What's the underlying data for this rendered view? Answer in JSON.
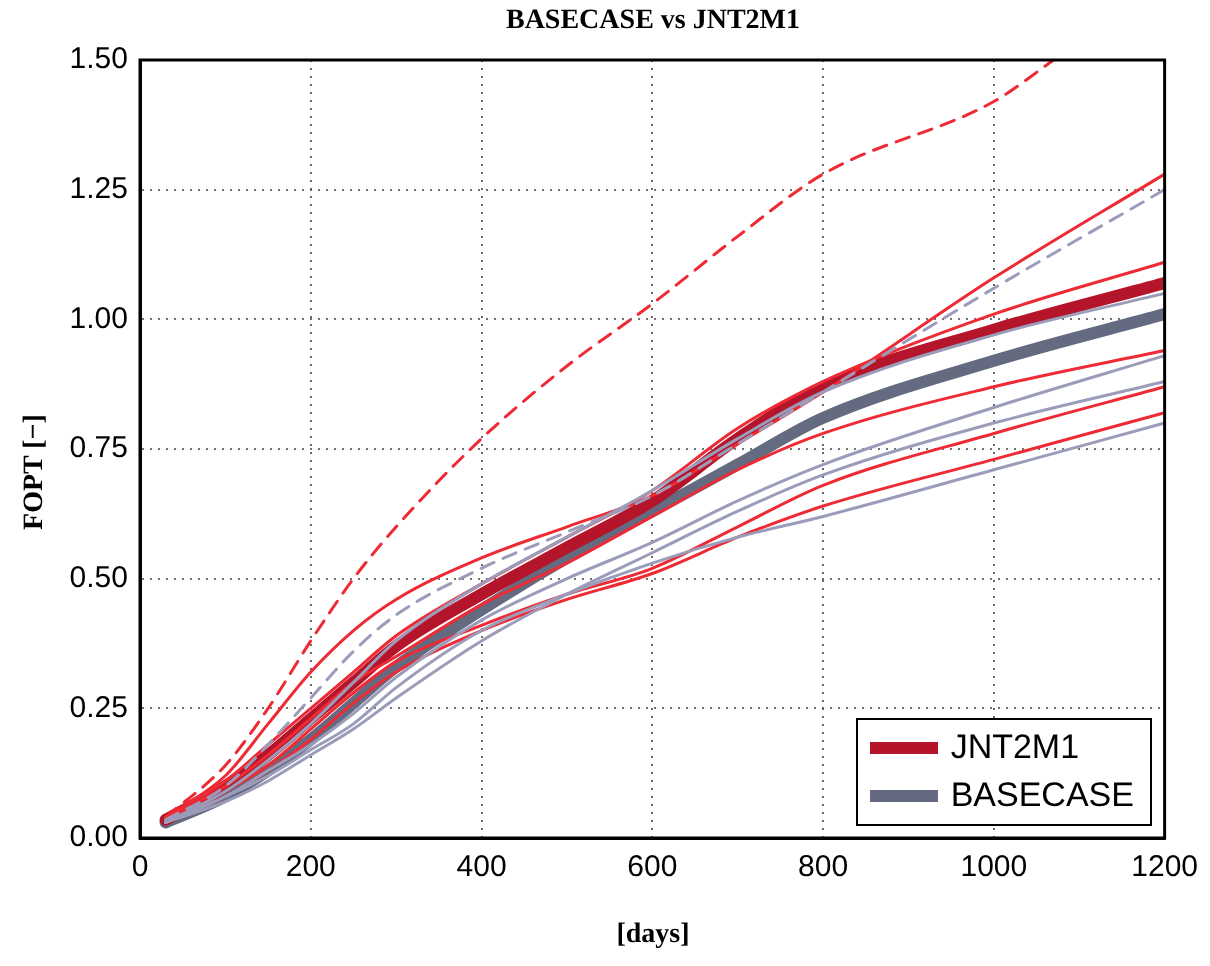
{
  "chart_data": {
    "type": "line",
    "title": "BASECASE vs JNT2M1",
    "xlabel": "[days]",
    "ylabel": "FOPT [−]",
    "x": [
      30,
      100,
      150,
      200,
      250,
      300,
      400,
      500,
      600,
      700,
      800,
      1000,
      1200
    ],
    "xlim": [
      0,
      1200
    ],
    "xticks": [
      0,
      200,
      400,
      600,
      800,
      1000,
      1200
    ],
    "ylim": [
      0,
      1.5
    ],
    "yticks": [
      {
        "value": 0,
        "label": "0.00"
      },
      {
        "value": 0.25,
        "label": "0.25"
      },
      {
        "value": 0.5,
        "label": "0.50"
      },
      {
        "value": 0.75,
        "label": "0.75"
      },
      {
        "value": 1,
        "label": "1.00"
      },
      {
        "value": 1.25,
        "label": "1.25"
      },
      {
        "value": 1.5,
        "label": "1.50"
      }
    ],
    "grid": true,
    "legend": "bottom right",
    "marker": "none",
    "line_style": "solid",
    "series": [
      {
        "color": "#9a9cba",
        "values": [
          0.03,
          0.08,
          0.12,
          0.17,
          0.22,
          0.29,
          0.4,
          0.47,
          0.53,
          0.58,
          0.62,
          0.71,
          0.8
        ]
      },
      {
        "color": "#9a9cba",
        "values": [
          0.03,
          0.08,
          0.13,
          0.18,
          0.24,
          0.31,
          0.42,
          0.5,
          0.57,
          0.65,
          0.72,
          0.83,
          0.93
        ]
      },
      {
        "color": "#9a9cba",
        "values": [
          0.03,
          0.09,
          0.15,
          0.22,
          0.3,
          0.38,
          0.49,
          0.58,
          0.67,
          0.77,
          0.86,
          0.97,
          1.05
        ]
      },
      {
        "color": "#9a9cba",
        "values": [
          0.03,
          0.07,
          0.11,
          0.16,
          0.21,
          0.27,
          0.38,
          0.47,
          0.55,
          0.63,
          0.7,
          0.8,
          0.88
        ]
      },
      {
        "color": "#9a9cba",
        "values": [
          0.035,
          0.1,
          0.18,
          0.27,
          0.36,
          0.43,
          0.52,
          0.59,
          0.66,
          0.76,
          0.86,
          1.06,
          1.25
        ],
        "line_style": "dashed"
      },
      {
        "color": "#ee2a35",
        "values": [
          0.03,
          0.08,
          0.13,
          0.19,
          0.26,
          0.32,
          0.4,
          0.46,
          0.51,
          0.58,
          0.64,
          0.73,
          0.82
        ]
      },
      {
        "color": "#ee2a35",
        "values": [
          0.03,
          0.09,
          0.14,
          0.21,
          0.28,
          0.34,
          0.41,
          0.47,
          0.52,
          0.6,
          0.68,
          0.78,
          0.87
        ]
      },
      {
        "color": "#ee2a35",
        "values": [
          0.035,
          0.1,
          0.16,
          0.23,
          0.3,
          0.35,
          0.45,
          0.53,
          0.62,
          0.71,
          0.78,
          0.87,
          0.94
        ]
      },
      {
        "color": "#ee2a35",
        "values": [
          0.04,
          0.11,
          0.18,
          0.25,
          0.32,
          0.39,
          0.49,
          0.58,
          0.67,
          0.79,
          0.88,
          1.01,
          1.11
        ]
      },
      {
        "color": "#ee2a35",
        "values": [
          0.04,
          0.12,
          0.22,
          0.32,
          0.4,
          0.46,
          0.54,
          0.6,
          0.66,
          0.76,
          0.86,
          1.08,
          1.28
        ]
      },
      {
        "color": "#ee2a35",
        "x": [
          30,
          100,
          150,
          200,
          250,
          300,
          400,
          500,
          600,
          700,
          800,
          1000,
          1070
        ],
        "values": [
          0.04,
          0.14,
          0.25,
          0.38,
          0.5,
          0.6,
          0.77,
          0.91,
          1.03,
          1.16,
          1.28,
          1.42,
          1.5
        ],
        "line_style": "dashed"
      },
      {
        "name": "JNT2M1",
        "color": "#b5152b",
        "values": [
          0.035,
          0.1,
          0.16,
          0.23,
          0.3,
          0.37,
          0.47,
          0.56,
          0.65,
          0.77,
          0.87,
          0.98,
          1.07
        ]
      },
      {
        "name": "BASECASE",
        "color": "#646a7f",
        "values": [
          0.03,
          0.08,
          0.13,
          0.19,
          0.26,
          0.33,
          0.44,
          0.54,
          0.63,
          0.72,
          0.81,
          0.92,
          1.01
        ]
      }
    ]
  }
}
